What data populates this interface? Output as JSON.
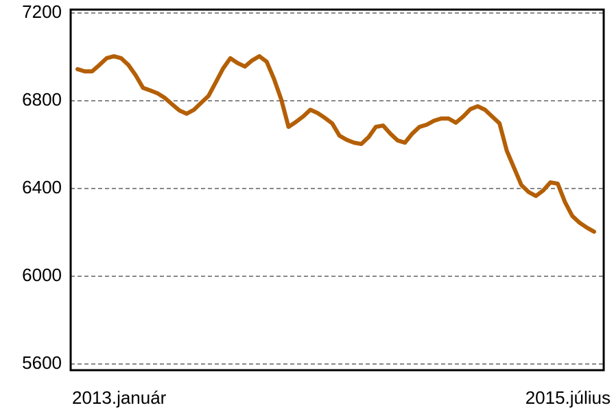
{
  "chart_data": {
    "type": "line",
    "categories": [
      "2013.január",
      null,
      null,
      null,
      null,
      null,
      null,
      null,
      null,
      null,
      null,
      null,
      null,
      null,
      null,
      null,
      null,
      null,
      null,
      null,
      null,
      null,
      null,
      null,
      null,
      null,
      null,
      null,
      null,
      null,
      null,
      null,
      null,
      null,
      null,
      null,
      null,
      null,
      null,
      null,
      null,
      null,
      null,
      null,
      null,
      null,
      null,
      null,
      null,
      null,
      null,
      null,
      null,
      null,
      null,
      null,
      null,
      null,
      null,
      null,
      null,
      null,
      null,
      null,
      null,
      null,
      null,
      null,
      null,
      null,
      null,
      "2015.július"
    ],
    "series": [
      {
        "name": null,
        "color": "#b45f06",
        "values": [
          6944,
          6934,
          6934,
          6963,
          6994,
          7003,
          6994,
          6963,
          6916,
          6859,
          6847,
          6834,
          6813,
          6784,
          6756,
          6741,
          6759,
          6791,
          6822,
          6884,
          6947,
          6994,
          6972,
          6956,
          6984,
          7003,
          6978,
          6900,
          6806,
          6681,
          6703,
          6728,
          6759,
          6744,
          6722,
          6697,
          6641,
          6622,
          6609,
          6603,
          6634,
          6681,
          6687,
          6650,
          6619,
          6609,
          6650,
          6681,
          6691,
          6709,
          6719,
          6719,
          6700,
          6728,
          6762,
          6775,
          6759,
          6728,
          6697,
          6572,
          6494,
          6416,
          6384,
          6366,
          6391,
          6428,
          6422,
          6338,
          6275,
          6244,
          6222,
          6203
        ]
      }
    ],
    "ylim": [
      5600,
      7200
    ],
    "yticks": [
      5600,
      6000,
      6400,
      6800,
      7200
    ],
    "grid": true
  }
}
